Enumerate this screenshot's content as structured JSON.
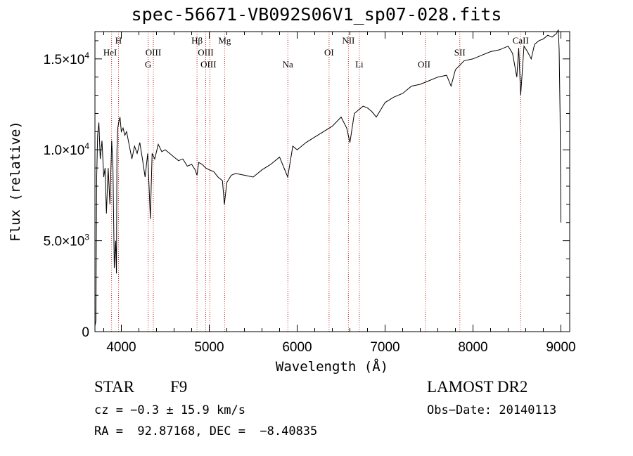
{
  "chart_data": {
    "type": "line",
    "title": "spec-56671-VB092S06V1_sp07-028.fits",
    "xlabel": "Wavelength (Å)",
    "ylabel": "Flux (relative)",
    "xlim": [
      3700,
      9100
    ],
    "ylim": [
      0,
      16500
    ],
    "xticks": [
      4000,
      5000,
      6000,
      7000,
      8000,
      9000
    ],
    "yticks": [
      {
        "value": 0,
        "label": "0"
      },
      {
        "value": 5000,
        "label": "5.0×10",
        "exp": "3"
      },
      {
        "value": 10000,
        "label": "1.0×10",
        "exp": "4"
      },
      {
        "value": 15000,
        "label": "1.5×10",
        "exp": "4"
      }
    ],
    "grid": false,
    "spectrum": {
      "x": [
        3700,
        3710,
        3720,
        3730,
        3745,
        3760,
        3780,
        3800,
        3815,
        3830,
        3850,
        3870,
        3890,
        3905,
        3920,
        3935,
        3945,
        3950,
        3960,
        3970,
        3985,
        4000,
        4020,
        4040,
        4060,
        4080,
        4100,
        4120,
        4150,
        4180,
        4210,
        4240,
        4270,
        4300,
        4330,
        4340,
        4350,
        4380,
        4420,
        4460,
        4500,
        4550,
        4600,
        4650,
        4700,
        4750,
        4800,
        4840,
        4861,
        4880,
        4920,
        4960,
        5000,
        5050,
        5100,
        5150,
        5172,
        5200,
        5250,
        5300,
        5400,
        5500,
        5600,
        5700,
        5800,
        5893,
        5950,
        6000,
        6100,
        6200,
        6300,
        6400,
        6500,
        6563,
        6600,
        6650,
        6700,
        6750,
        6800,
        6850,
        6900,
        7000,
        7100,
        7200,
        7300,
        7400,
        7500,
        7600,
        7700,
        7750,
        7800,
        7900,
        8000,
        8100,
        8200,
        8300,
        8400,
        8450,
        8498,
        8520,
        8542,
        8580,
        8620,
        8662,
        8700,
        8750,
        8800,
        8850,
        8900,
        8950,
        8970,
        8980,
        8990,
        9000
      ],
      "y": [
        300,
        600,
        8500,
        10800,
        11500,
        9500,
        10500,
        8500,
        9000,
        6500,
        9000,
        7000,
        10500,
        9000,
        3500,
        5000,
        3200,
        10000,
        11200,
        11500,
        11800,
        11000,
        11200,
        10800,
        11000,
        10500,
        10000,
        9500,
        10200,
        9800,
        10400,
        9500,
        8500,
        9800,
        6200,
        8000,
        9800,
        9500,
        10300,
        9900,
        10000,
        9800,
        9600,
        9400,
        9500,
        9100,
        9200,
        8900,
        8600,
        9300,
        9200,
        9000,
        8900,
        8800,
        8500,
        8300,
        7000,
        8200,
        8600,
        8700,
        8600,
        8500,
        8900,
        9200,
        9600,
        8500,
        10200,
        10000,
        10400,
        10700,
        11000,
        11300,
        11800,
        11200,
        10400,
        12000,
        12200,
        12400,
        12300,
        12100,
        11800,
        12600,
        12900,
        13100,
        13500,
        13600,
        13800,
        14000,
        14100,
        13500,
        14400,
        14900,
        15000,
        15200,
        15400,
        15500,
        15700,
        15300,
        14000,
        15600,
        13000,
        15700,
        15400,
        15000,
        15800,
        16000,
        16100,
        16300,
        16200,
        16400,
        16600,
        15500,
        12000,
        6000
      ]
    },
    "lines": [
      {
        "name": "HeI",
        "x": 3889
      },
      {
        "name": "H",
        "x": 3968
      },
      {
        "name": "G",
        "x": 4305
      },
      {
        "name": "OIII",
        "x": 4364
      },
      {
        "name": "Hβ",
        "x": 4861
      },
      {
        "name": "OIII",
        "x": 4960
      },
      {
        "name": "OIII",
        "x": 5007
      },
      {
        "name": "Mg",
        "x": 5175
      },
      {
        "name": "Na",
        "x": 5894
      },
      {
        "name": "OI",
        "x": 6363
      },
      {
        "name": "NII",
        "x": 6583
      },
      {
        "name": "Li",
        "x": 6707
      },
      {
        "name": "OII",
        "x": 7460
      },
      {
        "name": "SII",
        "x": 7850
      },
      {
        "name": "CaII",
        "x": 8542
      }
    ]
  },
  "info": {
    "object_type": "STAR",
    "object_class": "F9",
    "survey": "LAMOST DR2",
    "cz": "cz = −0.3 ± 15.9 km/s",
    "obs_date": "Obs−Date: 20140113",
    "ra_dec": "RA =  92.87168, DEC =  −8.40835"
  },
  "colors": {
    "spectrum": "#000000",
    "line_markers": "#cc2222",
    "axes": "#000000"
  }
}
